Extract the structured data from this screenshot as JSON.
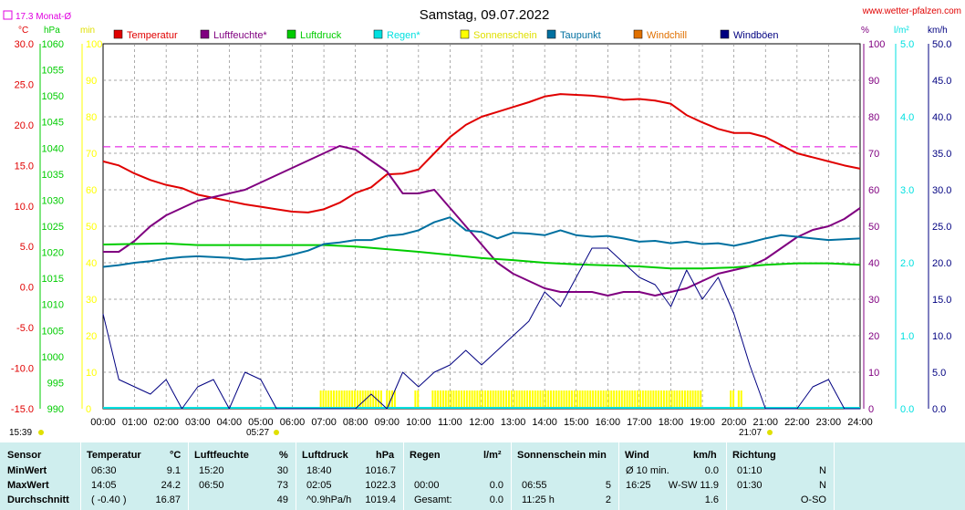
{
  "header": {
    "title": "Samstag, 09.07.2022",
    "site": "www.wetter-pfalzen.com",
    "month_avg": "17.3 Monat-Ø",
    "unit_c": "°C",
    "unit_hpa": "hPa",
    "unit_min": "min",
    "unit_pct": "%",
    "unit_lm2": "l/m²",
    "unit_kmh": "km/h",
    "sunrise": "05:27",
    "sunset": "21:07",
    "time_now": "15:39"
  },
  "chart_data": {
    "type": "line",
    "title": "Samstag, 09.07.2022",
    "legend": [
      {
        "name": "Temperatur",
        "color": "#e00000"
      },
      {
        "name": "Luftfeuchte*",
        "color": "#800080"
      },
      {
        "name": "Luftdruck",
        "color": "#00cc00"
      },
      {
        "name": "Regen*",
        "color": "#00e0e0"
      },
      {
        "name": "Sonnenschein",
        "color": "#ffff00"
      },
      {
        "name": "Taupunkt",
        "color": "#0070a0"
      },
      {
        "name": "Windchill",
        "color": "#e07000"
      },
      {
        "name": "Windböen",
        "color": "#000080"
      }
    ],
    "legend_placement": "top",
    "grid": true,
    "x_ticks": [
      "00:00",
      "01:00",
      "02:00",
      "03:00",
      "04:00",
      "05:00",
      "06:00",
      "07:00",
      "08:00",
      "09:00",
      "10:00",
      "11:00",
      "12:00",
      "13:00",
      "14:00",
      "15:00",
      "16:00",
      "17:00",
      "18:00",
      "19:00",
      "20:00",
      "21:00",
      "22:00",
      "23:00",
      "24:00"
    ],
    "xlim": [
      0,
      24
    ],
    "axes": {
      "temp_c": {
        "ticks": [
          "30.0",
          "25.0",
          "20.0",
          "15.0",
          "10.0",
          "5.0",
          "0.0",
          "-5.0",
          "-10.0",
          "-15.0"
        ],
        "range": [
          -15,
          30
        ],
        "color": "#e00000"
      },
      "pressure_hpa": {
        "ticks": [
          "1060",
          "1055",
          "1050",
          "1045",
          "1040",
          "1035",
          "1030",
          "1025",
          "1020",
          "1015",
          "1010",
          "1005",
          "1000",
          "995",
          "990"
        ],
        "range": [
          990,
          1060
        ],
        "color": "#00cc00"
      },
      "sun_min": {
        "ticks": [
          "100",
          "90",
          "80",
          "70",
          "60",
          "50",
          "40",
          "30",
          "20",
          "10",
          "0"
        ],
        "range": [
          0,
          100
        ],
        "color": "#ffff00"
      },
      "humidity_pct": {
        "ticks": [
          "100",
          "90",
          "80",
          "70",
          "60",
          "50",
          "40",
          "30",
          "20",
          "10",
          "0"
        ],
        "range": [
          0,
          100
        ],
        "color": "#800080"
      },
      "rain_lm2": {
        "ticks": [
          "5.0",
          "4.0",
          "3.0",
          "2.0",
          "1.0",
          "0.0"
        ],
        "range": [
          0,
          5
        ],
        "color": "#00e0e0"
      },
      "wind_kmh": {
        "ticks": [
          "50.0",
          "45.0",
          "40.0",
          "35.0",
          "30.0",
          "25.0",
          "20.0",
          "15.0",
          "10.0",
          "5.0",
          "0.0"
        ],
        "range": [
          0,
          50
        ],
        "color": "#000080"
      }
    },
    "month_avg_line": 17.3,
    "series": [
      {
        "name": "Temperatur",
        "axis": "temp_c",
        "color": "#e00000",
        "x": [
          0,
          0.5,
          1,
          1.5,
          2,
          2.5,
          3,
          3.5,
          4,
          4.5,
          5,
          5.5,
          6,
          6.5,
          7,
          7.5,
          8,
          8.5,
          9,
          9.5,
          10,
          10.5,
          11,
          11.5,
          12,
          12.5,
          13,
          13.5,
          14,
          14.5,
          15,
          15.5,
          16,
          16.5,
          17,
          17.5,
          18,
          18.5,
          19,
          19.5,
          20,
          20.5,
          21,
          21.5,
          22,
          22.5,
          23,
          23.5,
          24
        ],
        "values": [
          15.5,
          15.0,
          14.0,
          13.2,
          12.6,
          12.2,
          11.4,
          11.0,
          10.6,
          10.2,
          9.9,
          9.6,
          9.3,
          9.2,
          9.6,
          10.4,
          11.6,
          12.3,
          13.9,
          14.0,
          14.5,
          16.5,
          18.5,
          20.0,
          21.0,
          21.6,
          22.2,
          22.8,
          23.5,
          23.8,
          23.7,
          23.6,
          23.4,
          23.1,
          23.2,
          23.0,
          22.6,
          21.2,
          20.3,
          19.5,
          19.0,
          19.0,
          18.5,
          17.5,
          16.5,
          16.0,
          15.5,
          15.0,
          14.6
        ]
      },
      {
        "name": "Luftfeuchte*",
        "axis": "humidity_pct",
        "color": "#800080",
        "x": [
          0,
          0.5,
          1,
          1.5,
          2,
          2.5,
          3,
          3.5,
          4,
          4.5,
          5,
          5.5,
          6,
          6.5,
          7,
          7.5,
          8,
          8.5,
          9,
          9.5,
          10,
          10.5,
          11,
          11.5,
          12,
          12.5,
          13,
          13.5,
          14,
          14.5,
          15,
          15.5,
          16,
          16.5,
          17,
          17.5,
          18,
          18.5,
          19,
          19.5,
          20,
          20.5,
          21,
          21.5,
          22,
          22.5,
          23,
          23.5,
          24
        ],
        "values": [
          43,
          43,
          46,
          50,
          53,
          55,
          57,
          58,
          59,
          60,
          62,
          64,
          66,
          68,
          70,
          72,
          71,
          68,
          65,
          59,
          59,
          60,
          55,
          50,
          45,
          40,
          37,
          35,
          33,
          32,
          32,
          32,
          31,
          32,
          32,
          31,
          32,
          33,
          35,
          37,
          38,
          39,
          41,
          44,
          47,
          49,
          50,
          52,
          55
        ]
      },
      {
        "name": "Luftdruck",
        "axis": "pressure_hpa",
        "color": "#00cc00",
        "x": [
          0,
          1,
          2,
          3,
          4,
          5,
          6,
          7,
          8,
          9,
          10,
          11,
          12,
          13,
          14,
          15,
          16,
          17,
          18,
          19,
          20,
          21,
          22,
          23,
          24
        ],
        "values": [
          1021.5,
          1021.6,
          1021.7,
          1021.4,
          1021.4,
          1021.4,
          1021.4,
          1021.4,
          1021.1,
          1020.6,
          1020.1,
          1019.5,
          1018.9,
          1018.5,
          1018.0,
          1017.7,
          1017.5,
          1017.3,
          1016.9,
          1016.9,
          1017.1,
          1017.6,
          1017.9,
          1017.9,
          1017.6
        ]
      },
      {
        "name": "Taupunkt",
        "axis": "temp_c",
        "color": "#0070a0",
        "x": [
          0,
          0.5,
          1,
          1.5,
          2,
          2.5,
          3,
          3.5,
          4,
          4.5,
          5,
          5.5,
          6,
          6.5,
          7,
          7.5,
          8,
          8.5,
          9,
          9.5,
          10,
          10.5,
          11,
          11.5,
          12,
          12.5,
          13,
          13.5,
          14,
          14.5,
          15,
          15.5,
          16,
          16.5,
          17,
          17.5,
          18,
          18.5,
          19,
          19.5,
          20,
          20.5,
          21,
          21.5,
          22,
          22.5,
          23,
          23.5,
          24
        ],
        "values": [
          2.5,
          2.7,
          3.0,
          3.2,
          3.5,
          3.7,
          3.8,
          3.7,
          3.6,
          3.4,
          3.5,
          3.6,
          4.0,
          4.5,
          5.3,
          5.5,
          5.8,
          5.8,
          6.3,
          6.5,
          7.0,
          8.0,
          8.6,
          7.0,
          6.8,
          6.0,
          6.7,
          6.6,
          6.4,
          7.0,
          6.4,
          6.2,
          6.3,
          6.0,
          5.6,
          5.7,
          5.4,
          5.6,
          5.3,
          5.4,
          5.1,
          5.5,
          6.0,
          6.4,
          6.2,
          6.0,
          5.8,
          5.9,
          6.0
        ]
      },
      {
        "name": "Windböen",
        "axis": "wind_kmh",
        "color": "#000080",
        "x": [
          0,
          0.5,
          1,
          1.5,
          2,
          2.5,
          3,
          3.5,
          4,
          4.5,
          5,
          5.5,
          6,
          6.5,
          7,
          7.5,
          8,
          8.5,
          9,
          9.5,
          10,
          10.5,
          11,
          11.5,
          12,
          12.5,
          13,
          13.5,
          14,
          14.5,
          15,
          15.5,
          16,
          16.5,
          17,
          17.5,
          18,
          18.5,
          19,
          19.5,
          20,
          20.5,
          21,
          21.5,
          22,
          22.5,
          23,
          23.5,
          24
        ],
        "values": [
          13,
          4,
          3,
          2,
          4,
          0,
          3,
          4,
          0,
          5,
          4,
          0,
          0,
          0,
          0,
          0,
          0,
          2,
          0,
          5,
          3,
          5,
          6,
          8,
          6,
          8,
          10,
          12,
          16,
          14,
          18,
          22,
          22,
          20,
          18,
          17,
          14,
          19,
          15,
          18,
          13,
          6,
          0,
          0,
          0,
          3,
          4,
          0,
          0
        ]
      },
      {
        "name": "Sonnenschein",
        "axis": "sun_min",
        "color": "#ffff00",
        "x": [
          6.9,
          7.5,
          8,
          8.5,
          9.0,
          9.9,
          10.5,
          11,
          11.5,
          12,
          12.5,
          13,
          13.5,
          14,
          14.5,
          15,
          15.5,
          16,
          16.5,
          17,
          17.5,
          18,
          18.5,
          19.0,
          19.9,
          20.2
        ],
        "values": [
          5,
          5,
          5,
          5,
          5,
          5,
          5,
          5,
          5,
          5,
          5,
          5,
          5,
          5,
          5,
          5,
          5,
          5,
          5,
          5,
          5,
          5,
          5,
          5,
          5,
          5
        ]
      }
    ]
  },
  "table": {
    "headers": {
      "sensor": "Sensor",
      "temperatur": "Temperatur",
      "temp_unit": "°C",
      "luftfeuchte": "Luftfeuchte",
      "hum_unit": "%",
      "luftdruck": "Luftdruck",
      "press_unit": "hPa",
      "regen": "Regen",
      "rain_unit": "l/m²",
      "sonnenschein": "Sonnenschein min",
      "wind": "Wind",
      "wind_unit": "km/h",
      "richtung": "Richtung"
    },
    "rows": [
      {
        "label": "MinWert",
        "temp_time": "06:30",
        "temp_val": "9.1",
        "hum_time": "15:20",
        "hum_val": "30",
        "press_time": "18:40",
        "press_val": "1016.7",
        "rain_time": "",
        "rain_val": "",
        "sun_time": "",
        "sun_val": "",
        "wind_time": "Ø 10 min.",
        "wind_val": "0.0",
        "dir_time": "01:10",
        "dir_val": "N"
      },
      {
        "label": "MaxWert",
        "temp_time": "14:05",
        "temp_val": "24.2",
        "hum_time": "06:50",
        "hum_val": "73",
        "press_time": "02:05",
        "press_val": "1022.3",
        "rain_time": "00:00",
        "rain_val": "0.0",
        "sun_time": "06:55",
        "sun_val": "5",
        "wind_time": "16:25",
        "wind_val": "W-SW 11.9",
        "dir_time": "01:30",
        "dir_val": "N"
      },
      {
        "label": "Durchschnitt",
        "temp_time": "( -0.40 )",
        "temp_val": "16.87",
        "hum_time": "",
        "hum_val": "49",
        "press_time": "^0.9hPa/h",
        "press_val": "1019.4",
        "rain_time": "Gesamt:",
        "rain_val": "0.0",
        "sun_time": "11:25 h",
        "sun_val": "2",
        "wind_time": "",
        "wind_val": "1.6",
        "dir_time": "",
        "dir_val": "O-SO"
      }
    ]
  }
}
